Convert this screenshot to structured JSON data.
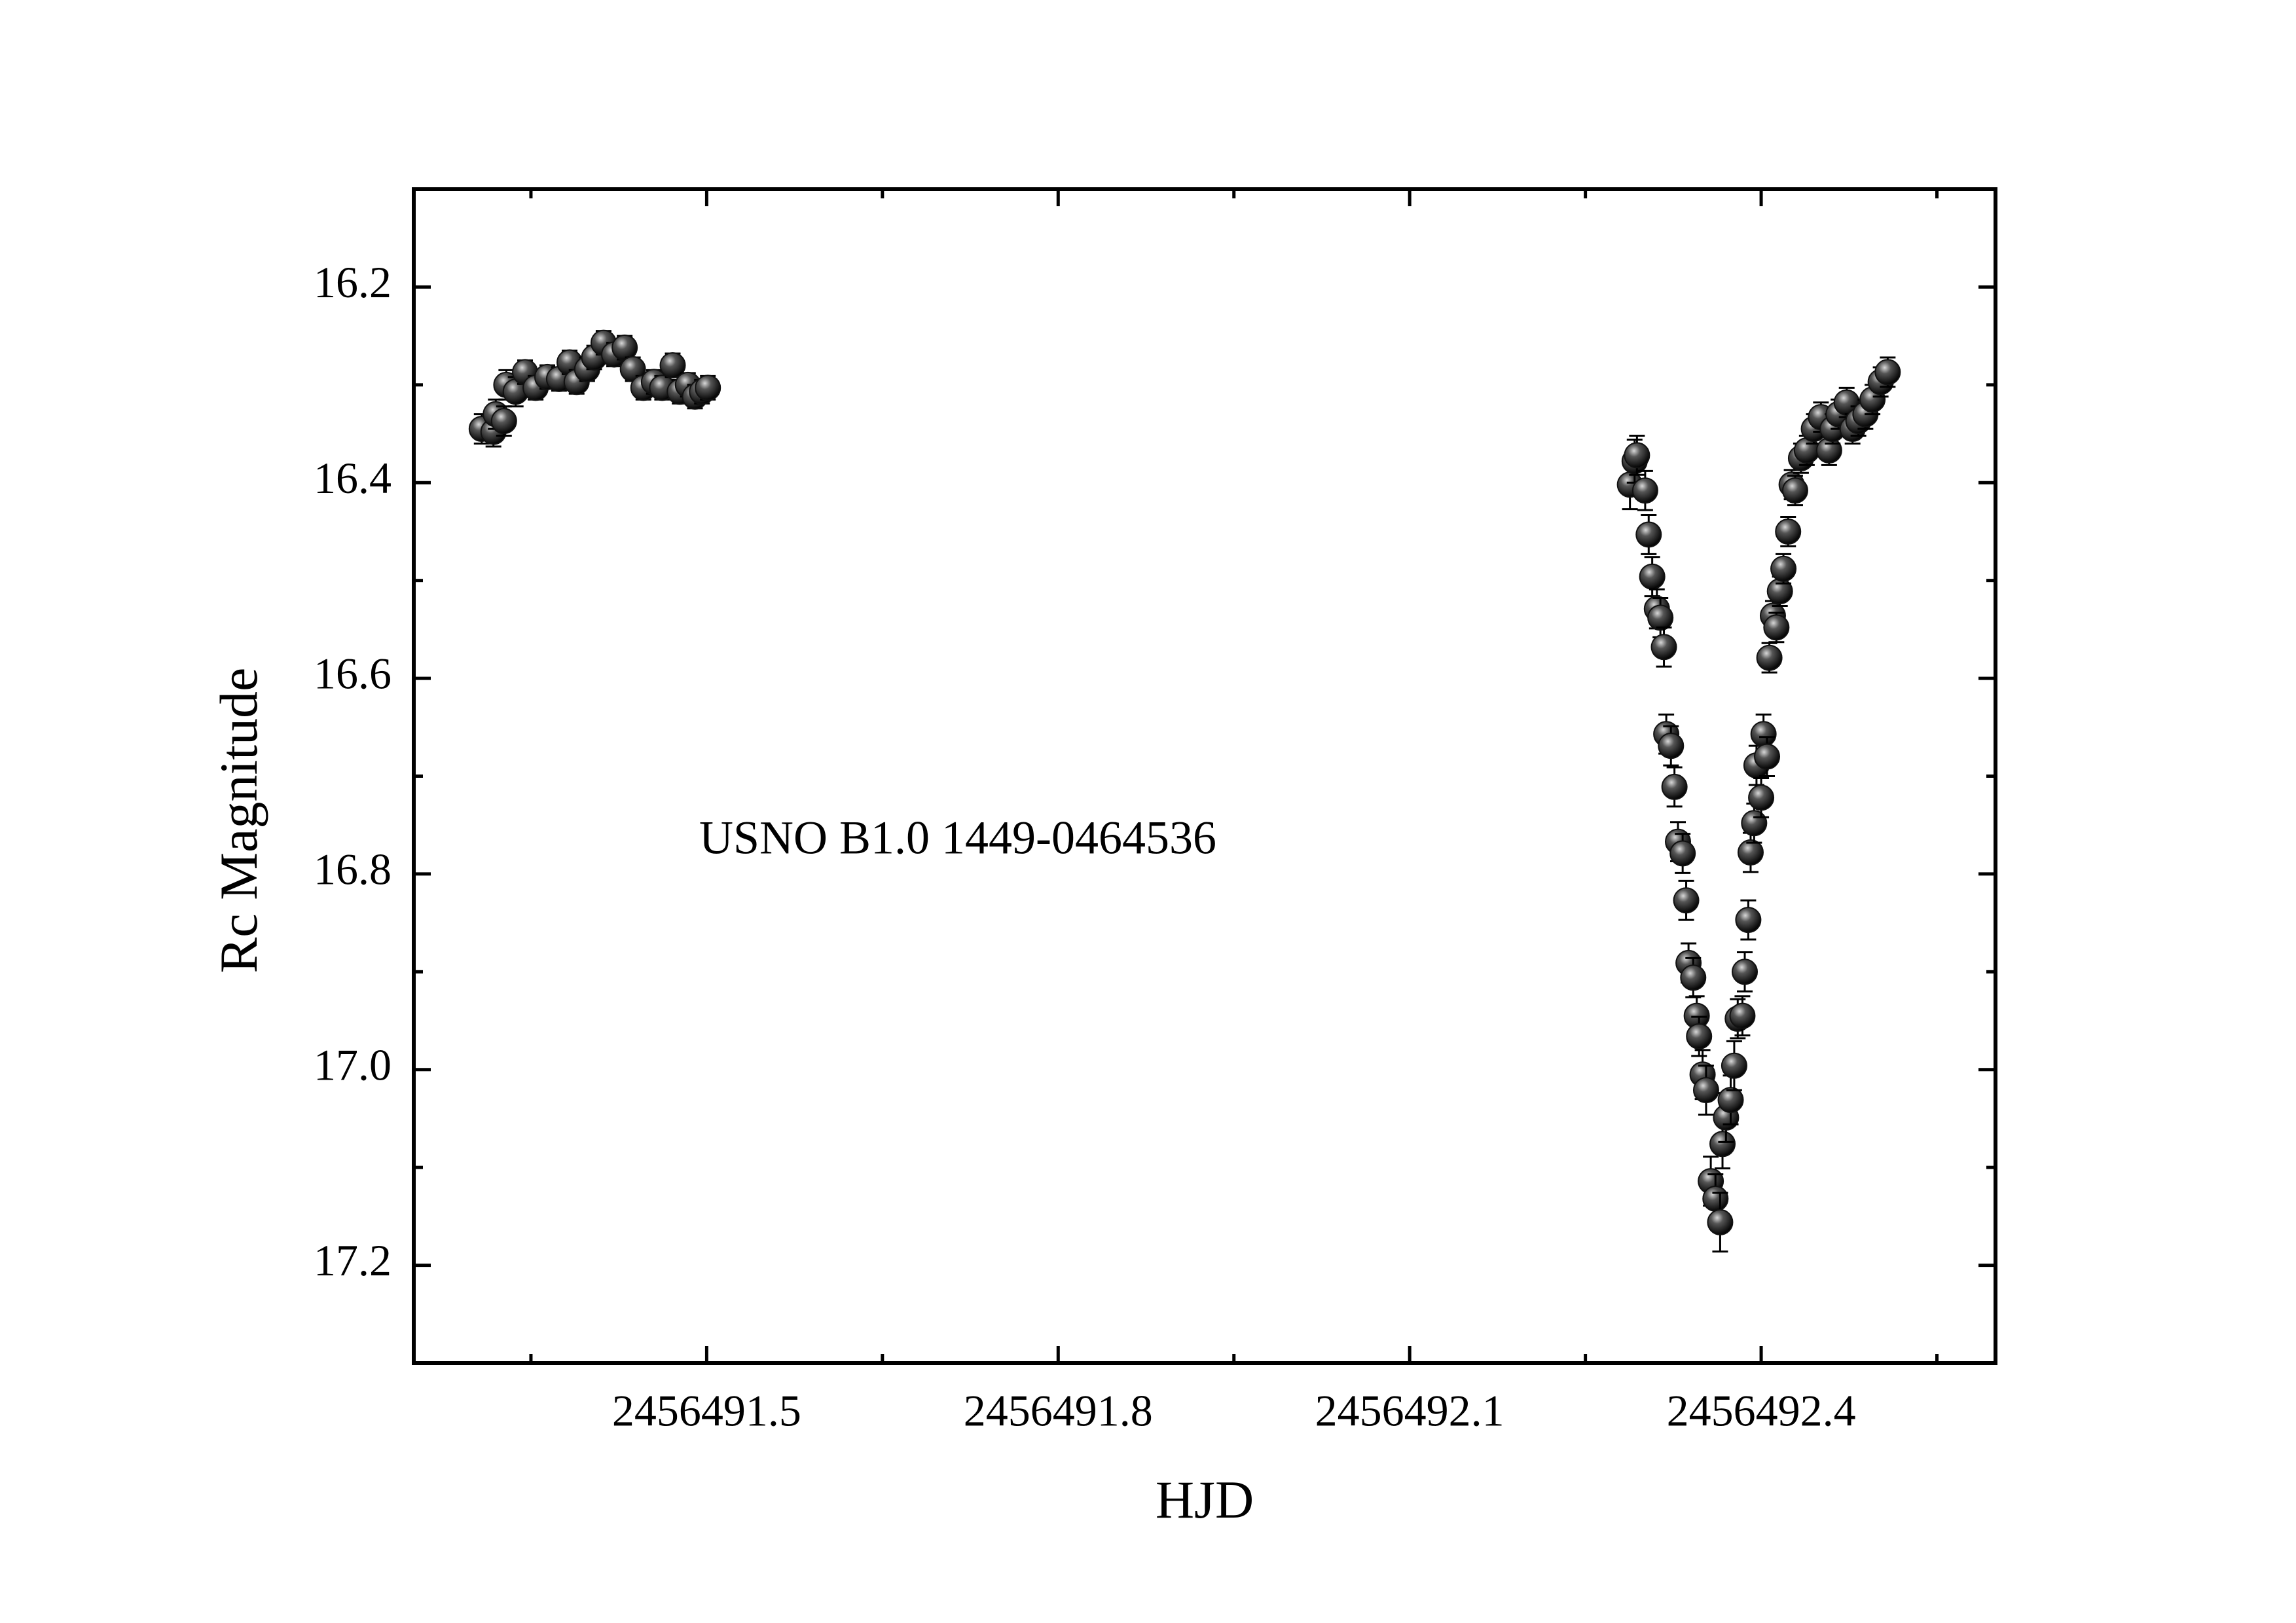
{
  "chart_data": {
    "type": "scatter",
    "x_label": "HJD",
    "y_label": "Rc Magnitude",
    "annotation": "USNO B1.0 1449-0464536",
    "color": "#111111",
    "y_reversed": true,
    "xlim": [
      2456491.25,
      2456492.6
    ],
    "ylim": [
      16.1,
      17.3
    ],
    "xticks": [
      2456491.5,
      2456491.8,
      2456492.1,
      2456492.4
    ],
    "xminorticks": [
      2456491.35,
      2456491.65,
      2456491.95,
      2456492.25,
      2456492.55
    ],
    "yticks": [
      16.2,
      16.4,
      16.6,
      16.8,
      {
        "value": 17,
        "label": "17.0"
      },
      17.2
    ],
    "yminorticks": [
      16.3,
      16.5,
      16.7,
      16.9,
      17.1
    ],
    "x": [
      2456491.308,
      2456491.318,
      2456491.32,
      2456491.327,
      2456491.329,
      2456491.337,
      2456491.345,
      2456491.354,
      2456491.364,
      2456491.374,
      2456491.383,
      2456491.389,
      2456491.398,
      2456491.404,
      2456491.412,
      2456491.421,
      2456491.43,
      2456491.437,
      2456491.446,
      2456491.455,
      2456491.462,
      2456491.471,
      2456491.477,
      2456491.484,
      2456491.49,
      2456491.496,
      2456491.501,
      2456492.288,
      2456492.292,
      2456492.294,
      2456492.301,
      2456492.304,
      2456492.307,
      2456492.311,
      2456492.314,
      2456492.317,
      2456492.319,
      2456492.323,
      2456492.326,
      2456492.329,
      2456492.333,
      2456492.336,
      2456492.338,
      2456492.342,
      2456492.345,
      2456492.347,
      2456492.35,
      2456492.353,
      2456492.357,
      2456492.361,
      2456492.365,
      2456492.367,
      2456492.37,
      2456492.374,
      2456492.377,
      2456492.38,
      2456492.384,
      2456492.386,
      2456492.389,
      2456492.391,
      2456492.394,
      2456492.396,
      2456492.4,
      2456492.402,
      2456492.405,
      2456492.407,
      2456492.41,
      2456492.413,
      2456492.416,
      2456492.419,
      2456492.423,
      2456492.426,
      2456492.429,
      2456492.434,
      2456492.439,
      2456492.445,
      2456492.451,
      2456492.458,
      2456492.461,
      2456492.466,
      2456492.473,
      2456492.478,
      2456492.483,
      2456492.489,
      2456492.495,
      2456492.502,
      2456492.508
    ],
    "values": [
      16.345,
      16.348,
      16.33,
      16.337,
      16.3,
      16.307,
      16.287,
      16.303,
      16.292,
      16.294,
      16.277,
      16.297,
      16.284,
      16.272,
      16.257,
      16.269,
      16.262,
      16.284,
      16.303,
      16.297,
      16.303,
      16.28,
      16.307,
      16.3,
      16.312,
      16.307,
      16.303,
      16.402,
      16.378,
      16.372,
      16.408,
      16.453,
      16.496,
      16.529,
      16.538,
      16.568,
      16.657,
      16.669,
      16.711,
      16.767,
      16.779,
      16.827,
      16.891,
      16.906,
      16.945,
      16.966,
      17.005,
      17.021,
      17.114,
      17.132,
      17.156,
      17.076,
      17.049,
      17.031,
      16.996,
      16.948,
      16.945,
      16.9,
      16.847,
      16.778,
      16.748,
      16.689,
      16.722,
      16.657,
      16.68,
      16.579,
      16.536,
      16.548,
      16.511,
      16.488,
      16.45,
      16.402,
      16.408,
      16.375,
      16.367,
      16.345,
      16.333,
      16.367,
      16.345,
      16.33,
      16.318,
      16.345,
      16.337,
      16.33,
      16.315,
      16.297,
      16.287
    ],
    "errors": [
      0.015,
      0.015,
      0.015,
      0.015,
      0.015,
      0.015,
      0.012,
      0.012,
      0.012,
      0.012,
      0.012,
      0.012,
      0.012,
      0.012,
      0.012,
      0.012,
      0.012,
      0.012,
      0.012,
      0.012,
      0.012,
      0.012,
      0.012,
      0.012,
      0.012,
      0.012,
      0.012,
      0.025,
      0.022,
      0.02,
      0.02,
      0.02,
      0.02,
      0.02,
      0.02,
      0.02,
      0.02,
      0.02,
      0.02,
      0.02,
      0.02,
      0.02,
      0.02,
      0.02,
      0.02,
      0.02,
      0.025,
      0.025,
      0.025,
      0.025,
      0.03,
      0.025,
      0.025,
      0.025,
      0.025,
      0.02,
      0.02,
      0.02,
      0.02,
      0.02,
      0.02,
      0.02,
      0.02,
      0.02,
      0.02,
      0.015,
      0.015,
      0.015,
      0.015,
      0.015,
      0.015,
      0.015,
      0.015,
      0.015,
      0.015,
      0.015,
      0.015,
      0.015,
      0.015,
      0.015,
      0.015,
      0.015,
      0.015,
      0.015,
      0.015,
      0.015,
      0.015
    ]
  }
}
